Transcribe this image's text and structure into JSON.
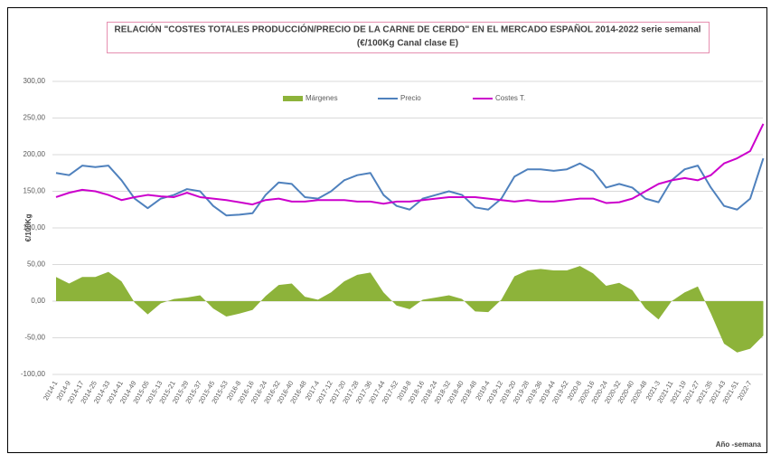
{
  "chart_data": {
    "type": "line",
    "title": "RELACIÓN \"COSTES TOTALES PRODUCCIÓN/PRECIO DE LA CARNE DE CERDO\" EN EL MERCADO ESPAÑOL 2014-2022 serie semanal",
    "subtitle": "(€/100Kg Canal clase E)",
    "y_label": "€/100Kg",
    "x_label": "Año -semana",
    "categories": [
      "2014-1",
      "2014-9",
      "2014-17",
      "2014-25",
      "2014-33",
      "2014-41",
      "2014-49",
      "2015-05",
      "2015-13",
      "2015-21",
      "2015-29",
      "2015-37",
      "2015-45",
      "2015-53",
      "2016-8",
      "2016-16",
      "2016-24",
      "2016-32",
      "2016-40",
      "2016-48",
      "2017-4",
      "2017-12",
      "2017-20",
      "2017-28",
      "2017-36",
      "2017-44",
      "2017-52",
      "2018-8",
      "2018-16",
      "2018-24",
      "2018-32",
      "2018-40",
      "2018-48",
      "2019-4",
      "2019-12",
      "2019-20",
      "2019-28",
      "2019-36",
      "2019-44",
      "2019-52",
      "2020-8",
      "2020-16",
      "2020-24",
      "2020-32",
      "2020-40",
      "2020-48",
      "2021-3",
      "2021-11",
      "2021-19",
      "2021-27",
      "2021-35",
      "2021-43",
      "2021-51",
      "2022-7",
      null
    ],
    "series": [
      {
        "name": "Márgenes",
        "kind": "area",
        "color": "#8db33a",
        "values": [
          33,
          24,
          33,
          33,
          40,
          27,
          -2,
          -18,
          -3,
          3,
          5,
          8,
          -10,
          -21,
          -17,
          -12,
          7,
          22,
          24,
          6,
          2,
          12,
          27,
          36,
          39,
          12,
          -6,
          -11,
          2,
          5,
          8,
          3,
          -14,
          -15,
          2,
          34,
          42,
          44,
          42,
          42,
          48,
          38,
          21,
          25,
          15,
          -10,
          -25,
          0,
          12,
          20,
          -17,
          -58,
          -70,
          -65,
          -47
        ]
      },
      {
        "name": "Precio",
        "kind": "line",
        "color": "#4f81bd",
        "values": [
          175,
          172,
          185,
          183,
          185,
          165,
          140,
          127,
          140,
          145,
          153,
          150,
          130,
          117,
          118,
          120,
          145,
          162,
          160,
          142,
          140,
          150,
          165,
          172,
          175,
          145,
          130,
          125,
          140,
          145,
          150,
          145,
          128,
          125,
          140,
          170,
          180,
          180,
          178,
          180,
          188,
          178,
          155,
          160,
          155,
          140,
          135,
          165,
          180,
          185,
          155,
          130,
          125,
          140,
          195
        ]
      },
      {
        "name": "Costes T.",
        "kind": "line",
        "color": "#cc00cc",
        "values": [
          142,
          148,
          152,
          150,
          145,
          138,
          142,
          145,
          143,
          142,
          148,
          142,
          140,
          138,
          135,
          132,
          138,
          140,
          136,
          136,
          138,
          138,
          138,
          136,
          136,
          133,
          136,
          136,
          138,
          140,
          142,
          142,
          142,
          140,
          138,
          136,
          138,
          136,
          136,
          138,
          140,
          140,
          134,
          135,
          140,
          150,
          160,
          165,
          168,
          165,
          172,
          188,
          195,
          205,
          242
        ]
      }
    ],
    "ylim": [
      -100,
      300
    ],
    "yticks": [
      {
        "value": -100,
        "label": "-100,00"
      },
      {
        "value": -50,
        "label": "-50,00"
      },
      {
        "value": 0,
        "label": "0,00"
      },
      {
        "value": 50,
        "label": "50,00"
      },
      {
        "value": 100,
        "label": "100,00"
      },
      {
        "value": 150,
        "label": "150,00"
      },
      {
        "value": 200,
        "label": "200,00"
      },
      {
        "value": 250,
        "label": "250,00"
      },
      {
        "value": 300,
        "label": "300,00"
      }
    ],
    "grid": true,
    "legend": "top"
  }
}
